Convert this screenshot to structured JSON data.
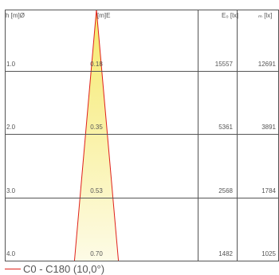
{
  "chart_data": {
    "type": "table",
    "columns": {
      "height": "h [m]Ø",
      "diameter": "[m]E",
      "e0": "E₀ [lx]",
      "em": "ₘ [lx]"
    },
    "rows": [
      {
        "h": "1.0",
        "d": "0.18",
        "e0": "15557",
        "em": "12691"
      },
      {
        "h": "2.0",
        "d": "0.35",
        "e0": "5361",
        "em": "3891"
      },
      {
        "h": "3.0",
        "d": "0.53",
        "e0": "2568",
        "em": "1784"
      },
      {
        "h": "4.0",
        "d": "0.70",
        "e0": "1482",
        "em": "1025"
      }
    ],
    "beam_angle_deg": 10.0,
    "max_height": 4.2,
    "legend": "C0 - C180 (10,0°)",
    "colors": {
      "beam_line": "#e0201a",
      "beam_fill_top": "#f6e96a",
      "beam_fill_bottom": "#fdfbe6",
      "grid": "#555555"
    }
  }
}
